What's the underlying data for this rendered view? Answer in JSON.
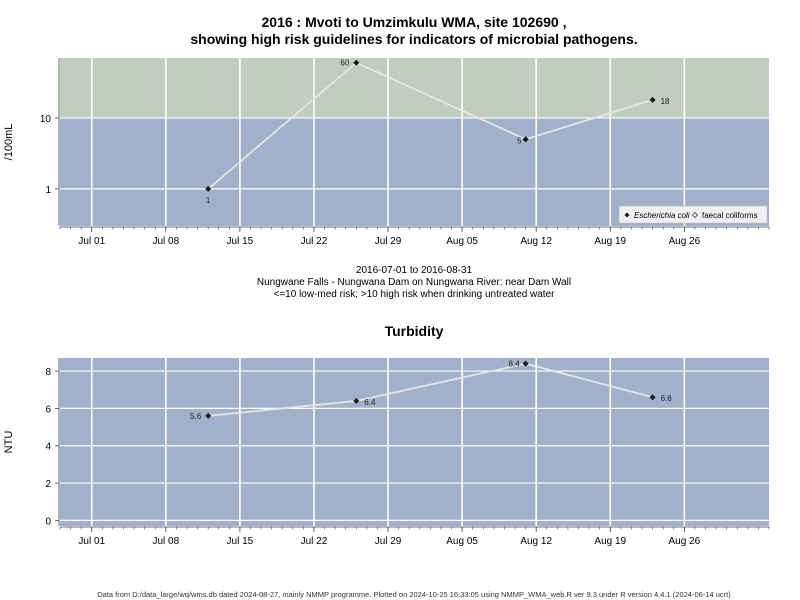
{
  "chart_data": [
    {
      "type": "line",
      "title_line1": "2016 : Mvoti to Umzimkulu WMA, site 102690 ,",
      "title_line2": "showing high risk guidelines for indicators of microbial pathogens.",
      "ylabel": "/100mL",
      "y_scale": "log",
      "ylim": [
        0.3,
        70
      ],
      "yticks": [
        {
          "value": 1,
          "label": "1"
        },
        {
          "value": 10,
          "label": "10"
        }
      ],
      "xlim": [
        "2016-06-28",
        "2016-09-03"
      ],
      "xticks": [
        "Jul 01",
        "Jul 08",
        "Jul 15",
        "Jul 22",
        "Jul 29",
        "Aug 05",
        "Aug 12",
        "Aug 19",
        "Aug 26"
      ],
      "xtick_dates": [
        "2016-07-01",
        "2016-07-08",
        "2016-07-15",
        "2016-07-22",
        "2016-07-29",
        "2016-08-05",
        "2016-08-12",
        "2016-08-19",
        "2016-08-26"
      ],
      "guideline": {
        "value": 10,
        "low_color": "#a1b1cb",
        "high_color": "#c3ccc1"
      },
      "series": [
        {
          "name": "Escherichia coli",
          "marker": "filled-diamond",
          "x": [
            "2016-07-12",
            "2016-07-26",
            "2016-08-11",
            "2016-08-23"
          ],
          "values": [
            1,
            60,
            5,
            18
          ],
          "labels": [
            "1",
            "60",
            "5",
            "18"
          ]
        }
      ],
      "legend": {
        "placement": "bottom-right",
        "entries": [
          {
            "label": "Escherichia coli",
            "marker": "filled-diamond",
            "italic": true
          },
          {
            "label": "faecal coliforms",
            "marker": "open-diamond",
            "italic": false
          }
        ]
      },
      "caption": [
        "2016-07-01 to 2016-08-31",
        "Nungwane Falls - Nungwana Dam on Nungwana River: near Dam Wall",
        "<=10 low-med risk; >10 high risk when drinking untreated water"
      ],
      "grid": true
    },
    {
      "type": "line",
      "title": "Turbidity",
      "ylabel": "NTU",
      "ylim": [
        -0.3,
        8.7
      ],
      "yticks": [
        {
          "value": 0,
          "label": "0"
        },
        {
          "value": 2,
          "label": "2"
        },
        {
          "value": 4,
          "label": "4"
        },
        {
          "value": 6,
          "label": "6"
        },
        {
          "value": 8,
          "label": "8"
        }
      ],
      "xlim": [
        "2016-06-28",
        "2016-09-03"
      ],
      "xticks": [
        "Jul 01",
        "Jul 08",
        "Jul 15",
        "Jul 22",
        "Jul 29",
        "Aug 05",
        "Aug 12",
        "Aug 19",
        "Aug 26"
      ],
      "xtick_dates": [
        "2016-07-01",
        "2016-07-08",
        "2016-07-15",
        "2016-07-22",
        "2016-07-29",
        "2016-08-05",
        "2016-08-12",
        "2016-08-19",
        "2016-08-26"
      ],
      "background": "#a1b1cb",
      "series": [
        {
          "name": "",
          "marker": "filled-diamond",
          "x": [
            "2016-07-12",
            "2016-07-26",
            "2016-08-11",
            "2016-08-23"
          ],
          "values": [
            5.6,
            6.4,
            8.4,
            6.6
          ],
          "labels": [
            "5.6",
            "6.4",
            "8.4",
            "6.6"
          ]
        }
      ],
      "grid": true
    }
  ],
  "footer": "Data from D:/data_large/wq/wms.db dated 2024-08-27, mainly NMMP programme. Plotted on 2024-10-25 16:33:05 using NMMP_WMA_web.R ver 9.3 under R version 4.4.1 (2024-06-14 ucrt)",
  "colors": {
    "line": "#e6e6e6",
    "grid": "#ffffff",
    "marker": "#1a1a1a",
    "axis": "#444444"
  }
}
